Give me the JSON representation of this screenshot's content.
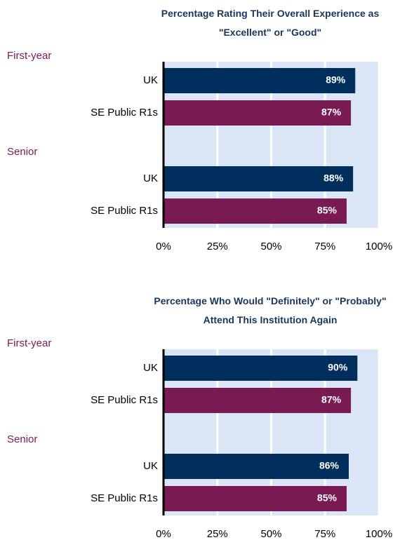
{
  "chart_data": [
    {
      "type": "bar",
      "orientation": "horizontal",
      "title": "Percentage Rating Their Overall Experience as \"Excellent\" or \"Good\"",
      "groups": [
        {
          "name": "First-year",
          "categories": [
            "UK",
            "SE Public R1s"
          ],
          "values": [
            89,
            87
          ],
          "value_labels": [
            "89%",
            "87%"
          ]
        },
        {
          "name": "Senior",
          "categories": [
            "UK",
            "SE Public R1s"
          ],
          "values": [
            88,
            85
          ],
          "value_labels": [
            "88%",
            "85%"
          ]
        }
      ],
      "colors": [
        "#002e5d",
        "#7a1a52"
      ],
      "xlim": [
        0,
        100
      ],
      "xticks": [
        {
          "value": 0,
          "label": "0%"
        },
        {
          "value": 25,
          "label": "25%"
        },
        {
          "value": 50,
          "label": "50%"
        },
        {
          "value": 75,
          "label": "75%"
        },
        {
          "value": 100,
          "label": "100%"
        }
      ],
      "grid": true
    },
    {
      "type": "bar",
      "orientation": "horizontal",
      "title": "Percentage Who Would \"Definitely\" or \"Probably\" Attend This Institution Again",
      "groups": [
        {
          "name": "First-year",
          "categories": [
            "UK",
            "SE Public R1s"
          ],
          "values": [
            90,
            87
          ],
          "value_labels": [
            "90%",
            "87%"
          ]
        },
        {
          "name": "Senior",
          "categories": [
            "UK",
            "SE Public R1s"
          ],
          "values": [
            86,
            85
          ],
          "value_labels": [
            "86%",
            "85%"
          ]
        }
      ],
      "colors": [
        "#002e5d",
        "#7a1a52"
      ],
      "xlim": [
        0,
        100
      ],
      "xticks": [
        {
          "value": 0,
          "label": "0%"
        },
        {
          "value": 25,
          "label": "25%"
        },
        {
          "value": 50,
          "label": "50%"
        },
        {
          "value": 75,
          "label": "75%"
        },
        {
          "value": 100,
          "label": "100%"
        }
      ],
      "grid": true
    }
  ]
}
